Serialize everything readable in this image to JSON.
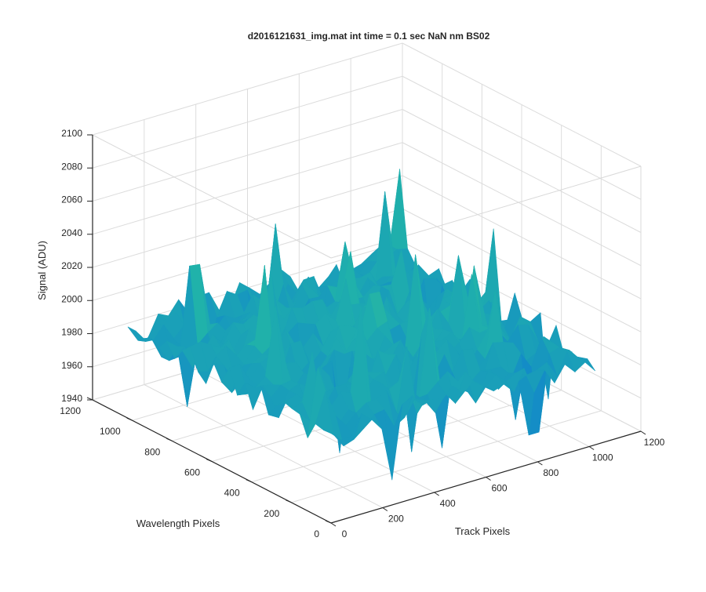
{
  "chart_data": {
    "type": "surface",
    "title": "d2016121631_img.mat int time = 0.1 sec  NaN nm BS02",
    "xlabel": "Track Pixels",
    "ylabel": "Wavelength Pixels",
    "zlabel": "Signal (ADU)",
    "xlim": [
      0,
      1200
    ],
    "ylim": [
      0,
      1200
    ],
    "zlim": [
      1940,
      2100
    ],
    "x_ticks": [
      "0",
      "200",
      "400",
      "600",
      "800",
      "1000",
      "1200"
    ],
    "y_ticks": [
      "0",
      "200",
      "400",
      "600",
      "800",
      "1000",
      "1200"
    ],
    "z_ticks": [
      "1940",
      "1960",
      "1980",
      "2000",
      "2020",
      "2040",
      "2060",
      "2080",
      "2100"
    ],
    "data_extent": {
      "x": [
        1,
        1024
      ],
      "y": [
        1,
        1024
      ]
    },
    "signal_summary": {
      "baseline_mean": 1990,
      "center_mean": 2002,
      "noise_min": 1950,
      "noise_max": 2085
    },
    "colormap": "parula",
    "grid": true,
    "view": "3d-perspective"
  },
  "colors": {
    "surface_low": "#0f7fd1",
    "surface_mid": "#20b2aa",
    "surface_high": "#c8c83a",
    "axis": "#262626",
    "grid": "#dcdcdc"
  }
}
